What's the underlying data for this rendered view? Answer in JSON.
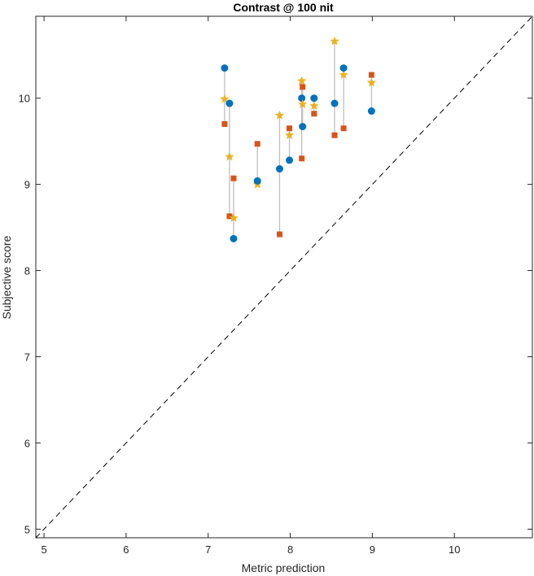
{
  "chart_data": {
    "type": "scatter",
    "title": "Contrast @ 100 nit",
    "xlabel": "Metric prediction",
    "ylabel": "Subjective score",
    "xlim": [
      4.9,
      10.95
    ],
    "ylim": [
      4.9,
      10.95
    ],
    "xticks": [
      5,
      6,
      7,
      8,
      9,
      10
    ],
    "yticks": [
      5,
      6,
      7,
      8,
      9,
      10
    ],
    "grid": false,
    "legend": "none",
    "reference_line": {
      "style": "dashed",
      "color": "#000000",
      "from": [
        4.9,
        4.9
      ],
      "to": [
        10.95,
        10.95
      ]
    },
    "colors": {
      "circle": "#0072BD",
      "square": "#D95319",
      "star": "#EDB120",
      "connector": "#BFBFBF"
    },
    "groups": [
      {
        "x": 7.2,
        "circle": 10.35,
        "square": 9.7,
        "star": 9.99
      },
      {
        "x": 7.26,
        "circle": 9.94,
        "square": 8.63,
        "star": 9.32
      },
      {
        "x": 7.31,
        "circle": 8.37,
        "square": 9.07,
        "star": 8.61
      },
      {
        "x": 7.6,
        "circle": 9.04,
        "square": 9.47,
        "star": 9.0
      },
      {
        "x": 7.87,
        "circle": 9.18,
        "square": 8.42,
        "star": 9.8
      },
      {
        "x": 7.99,
        "circle": 9.28,
        "square": 9.65,
        "star": 9.57
      },
      {
        "x": 8.14,
        "circle": 10.0,
        "square": 9.3,
        "star": 10.2
      },
      {
        "x": 8.15,
        "circle": 9.67,
        "square": 10.13,
        "star": 9.93
      },
      {
        "x": 8.29,
        "circle": 10.0,
        "square": 9.82,
        "star": 9.91
      },
      {
        "x": 8.54,
        "circle": 9.94,
        "square": 9.57,
        "star": 10.66
      },
      {
        "x": 8.65,
        "circle": 10.35,
        "square": 9.65,
        "star": 10.27
      },
      {
        "x": 8.99,
        "circle": 9.85,
        "square": 10.27,
        "star": 10.18
      }
    ]
  }
}
